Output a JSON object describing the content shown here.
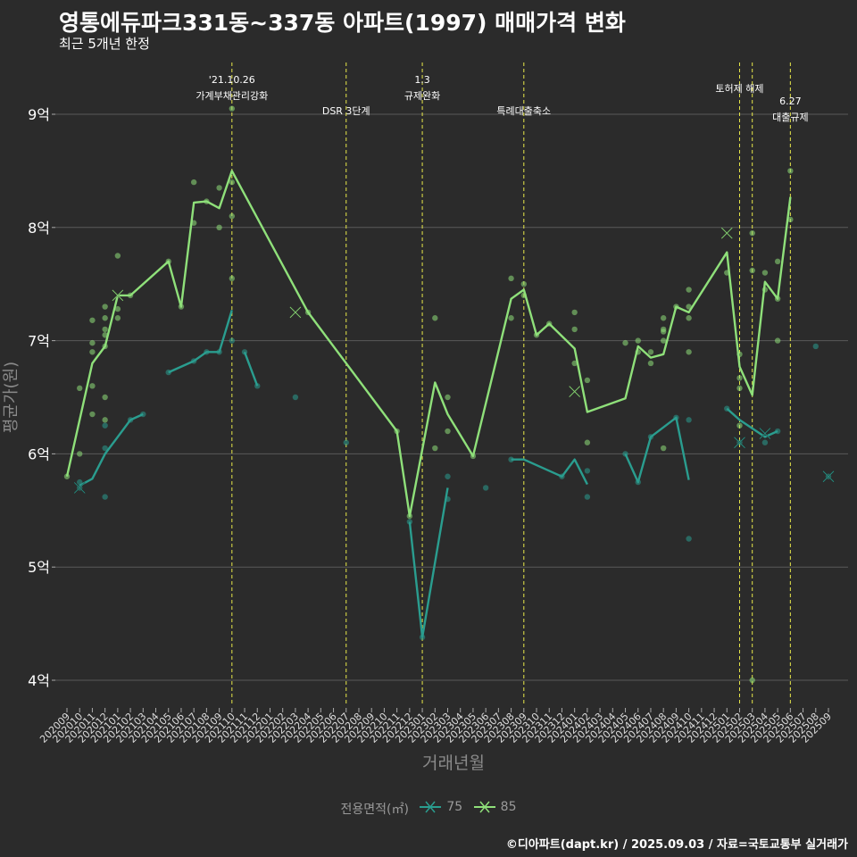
{
  "header": {
    "title": "영통에듀파크331동~337동 아파트(1997) 매매가격 변화",
    "subtitle": "최근 5개년 한정"
  },
  "caption": "©디아파트(dapt.kr) / 2025.09.03 / 자료=국토교통부 실거래가",
  "colors": {
    "background": "#2b2b2b",
    "grid": "#5a5a5a",
    "series_75": "#2a9d8f",
    "series_85": "#8fe07a",
    "event_line": "#e8e84a"
  },
  "chart_data": {
    "type": "line",
    "title": "영통에듀파크331동~337동 아파트(1997) 매매가격 변화",
    "subtitle": "최근 5개년 한정",
    "xlabel": "거래년월",
    "ylabel": "평균가(원)",
    "x_ticks": [
      "202009",
      "202010",
      "202011",
      "202012",
      "202101",
      "202102",
      "202103",
      "202104",
      "202105",
      "202106",
      "202107",
      "202108",
      "202109",
      "202110",
      "202111",
      "202112",
      "202201",
      "202202",
      "202203",
      "202204",
      "202205",
      "202206",
      "202207",
      "202208",
      "202209",
      "202210",
      "202211",
      "202212",
      "202301",
      "202302",
      "202303",
      "202304",
      "202305",
      "202306",
      "202307",
      "202308",
      "202309",
      "202310",
      "202311",
      "202312",
      "202401",
      "202402",
      "202403",
      "202404",
      "202405",
      "202406",
      "202407",
      "202408",
      "202409",
      "202410",
      "202411",
      "202412",
      "202501",
      "202502",
      "202503",
      "202504",
      "202505",
      "202506",
      "202507",
      "202508",
      "202509"
    ],
    "y_ticks": [
      4,
      5,
      6,
      7,
      8,
      9
    ],
    "y_tick_labels": [
      "4억",
      "5억",
      "6억",
      "7억",
      "8억",
      "9억"
    ],
    "ylim": [
      3.8,
      9.35
    ],
    "grid": true,
    "legend": {
      "title": "전용면적(㎡)",
      "position": "bottom",
      "items": [
        "75",
        "85"
      ]
    },
    "events": [
      {
        "month": "202110",
        "label_lines": [
          "'21.10.26",
          "가계부채관리강화"
        ]
      },
      {
        "month": "202207",
        "label_lines": [
          "DSR 3단계"
        ]
      },
      {
        "month": "202301",
        "label_lines": [
          "1.3",
          "규제완화"
        ]
      },
      {
        "month": "202309",
        "label_lines": [
          "특례대출축소"
        ]
      },
      {
        "month": "202502",
        "label_lines": [
          "토허제 해제"
        ]
      },
      {
        "month": "202503",
        "label_lines": [
          ""
        ]
      },
      {
        "month": "202506",
        "label_lines": [
          "6.27",
          "대출규제"
        ]
      }
    ],
    "series": [
      {
        "name": "75",
        "color": "#2a9d8f",
        "line": [
          {
            "x": "202010",
            "y": 5.72
          },
          {
            "x": "202011",
            "y": 5.78
          },
          {
            "x": "202012",
            "y": 6.0
          },
          {
            "x": "202102",
            "y": 6.3
          },
          {
            "x": "202103",
            "y": 6.35
          },
          null,
          {
            "x": "202105",
            "y": 6.72
          },
          {
            "x": "202107",
            "y": 6.82
          },
          {
            "x": "202108",
            "y": 6.9
          },
          {
            "x": "202109",
            "y": 6.9
          },
          {
            "x": "202110",
            "y": 7.27
          },
          null,
          {
            "x": "202111",
            "y": 6.9
          },
          {
            "x": "202112",
            "y": 6.6
          },
          null,
          {
            "x": "202212",
            "y": 5.4
          },
          {
            "x": "202301",
            "y": 4.38
          },
          {
            "x": "202303",
            "y": 5.7
          },
          null,
          {
            "x": "202308",
            "y": 5.95
          },
          {
            "x": "202309",
            "y": 5.95
          },
          {
            "x": "202312",
            "y": 5.8
          },
          {
            "x": "202401",
            "y": 5.95
          },
          {
            "x": "202402",
            "y": 5.73
          },
          null,
          {
            "x": "202405",
            "y": 6.0
          },
          {
            "x": "202406",
            "y": 5.75
          },
          {
            "x": "202407",
            "y": 6.15
          },
          {
            "x": "202409",
            "y": 6.32
          },
          {
            "x": "202410",
            "y": 5.77
          },
          null,
          {
            "x": "202501",
            "y": 6.4
          },
          {
            "x": "202502",
            "y": 6.3
          },
          {
            "x": "202504",
            "y": 6.15
          },
          {
            "x": "202505",
            "y": 6.2
          }
        ],
        "points": [
          {
            "x": "202010",
            "y": 5.75
          },
          {
            "x": "202010",
            "y": 5.7
          },
          {
            "x": "202012",
            "y": 6.05
          },
          {
            "x": "202012",
            "y": 5.62
          },
          {
            "x": "202012",
            "y": 6.25
          },
          {
            "x": "202102",
            "y": 6.3
          },
          {
            "x": "202103",
            "y": 6.35
          },
          {
            "x": "202105",
            "y": 6.72
          },
          {
            "x": "202107",
            "y": 6.82
          },
          {
            "x": "202108",
            "y": 6.9
          },
          {
            "x": "202109",
            "y": 6.9
          },
          {
            "x": "202110",
            "y": 7.0
          },
          {
            "x": "202111",
            "y": 6.9
          },
          {
            "x": "202112",
            "y": 6.6
          },
          {
            "x": "202203",
            "y": 6.5
          },
          {
            "x": "202207",
            "y": 6.1
          },
          {
            "x": "202212",
            "y": 5.4
          },
          {
            "x": "202301",
            "y": 4.38
          },
          {
            "x": "202303",
            "y": 5.8
          },
          {
            "x": "202303",
            "y": 5.6
          },
          {
            "x": "202306",
            "y": 5.7
          },
          {
            "x": "202308",
            "y": 5.95
          },
          {
            "x": "202312",
            "y": 5.8
          },
          {
            "x": "202402",
            "y": 5.85
          },
          {
            "x": "202402",
            "y": 5.62
          },
          {
            "x": "202405",
            "y": 6.0
          },
          {
            "x": "202406",
            "y": 5.75
          },
          {
            "x": "202407",
            "y": 6.15
          },
          {
            "x": "202409",
            "y": 6.32
          },
          {
            "x": "202410",
            "y": 6.3
          },
          {
            "x": "202410",
            "y": 5.25
          },
          {
            "x": "202501",
            "y": 6.4
          },
          {
            "x": "202502",
            "y": 6.1
          },
          {
            "x": "202504",
            "y": 6.1
          },
          {
            "x": "202505",
            "y": 6.2
          },
          {
            "x": "202508",
            "y": 6.95
          },
          {
            "x": "202509",
            "y": 5.8
          }
        ],
        "markers_x": [
          {
            "x": "202010",
            "y": 5.7
          },
          {
            "x": "202502",
            "y": 6.1
          },
          {
            "x": "202504",
            "y": 6.18
          },
          {
            "x": "202509",
            "y": 5.8
          }
        ]
      },
      {
        "name": "85",
        "color": "#8fe07a",
        "line": [
          {
            "x": "202009",
            "y": 5.8
          },
          {
            "x": "202011",
            "y": 6.8
          },
          {
            "x": "202012",
            "y": 6.95
          },
          {
            "x": "202101",
            "y": 7.4
          },
          {
            "x": "202102",
            "y": 7.4
          },
          {
            "x": "202105",
            "y": 7.7
          },
          {
            "x": "202106",
            "y": 7.3
          },
          {
            "x": "202107",
            "y": 8.22
          },
          {
            "x": "202108",
            "y": 8.23
          },
          {
            "x": "202109",
            "y": 8.17
          },
          {
            "x": "202110",
            "y": 8.5
          },
          {
            "x": "202204",
            "y": 7.25
          },
          {
            "x": "202211",
            "y": 6.2
          },
          {
            "x": "202212",
            "y": 5.45
          },
          {
            "x": "202302",
            "y": 6.63
          },
          {
            "x": "202303",
            "y": 6.35
          },
          {
            "x": "202305",
            "y": 5.98
          },
          {
            "x": "202308",
            "y": 7.37
          },
          {
            "x": "202309",
            "y": 7.45
          },
          {
            "x": "202310",
            "y": 7.05
          },
          {
            "x": "202311",
            "y": 7.15
          },
          {
            "x": "202401",
            "y": 6.93
          },
          {
            "x": "202402",
            "y": 6.37
          },
          {
            "x": "202405",
            "y": 6.49
          },
          {
            "x": "202406",
            "y": 6.95
          },
          {
            "x": "202407",
            "y": 6.85
          },
          {
            "x": "202408",
            "y": 6.88
          },
          {
            "x": "202409",
            "y": 7.3
          },
          {
            "x": "202410",
            "y": 7.25
          },
          {
            "x": "202501",
            "y": 7.78
          },
          {
            "x": "202502",
            "y": 6.77
          },
          {
            "x": "202503",
            "y": 6.52
          },
          {
            "x": "202504",
            "y": 7.52
          },
          {
            "x": "202505",
            "y": 7.37
          },
          {
            "x": "202506",
            "y": 8.27
          }
        ],
        "points": [
          {
            "x": "202009",
            "y": 5.8
          },
          {
            "x": "202010",
            "y": 6.0
          },
          {
            "x": "202010",
            "y": 6.58
          },
          {
            "x": "202011",
            "y": 6.6
          },
          {
            "x": "202011",
            "y": 6.35
          },
          {
            "x": "202011",
            "y": 6.9
          },
          {
            "x": "202011",
            "y": 6.98
          },
          {
            "x": "202011",
            "y": 7.18
          },
          {
            "x": "202012",
            "y": 7.3
          },
          {
            "x": "202012",
            "y": 7.2
          },
          {
            "x": "202012",
            "y": 7.1
          },
          {
            "x": "202012",
            "y": 7.05
          },
          {
            "x": "202012",
            "y": 6.95
          },
          {
            "x": "202012",
            "y": 6.5
          },
          {
            "x": "202012",
            "y": 6.3
          },
          {
            "x": "202101",
            "y": 7.75
          },
          {
            "x": "202101",
            "y": 7.28
          },
          {
            "x": "202101",
            "y": 7.2
          },
          {
            "x": "202102",
            "y": 7.4
          },
          {
            "x": "202105",
            "y": 7.7
          },
          {
            "x": "202106",
            "y": 7.3
          },
          {
            "x": "202107",
            "y": 8.4
          },
          {
            "x": "202107",
            "y": 8.04
          },
          {
            "x": "202108",
            "y": 8.23
          },
          {
            "x": "202109",
            "y": 8.35
          },
          {
            "x": "202109",
            "y": 8.0
          },
          {
            "x": "202110",
            "y": 9.05
          },
          {
            "x": "202110",
            "y": 8.4
          },
          {
            "x": "202110",
            "y": 8.1
          },
          {
            "x": "202110",
            "y": 7.55
          },
          {
            "x": "202204",
            "y": 7.25
          },
          {
            "x": "202211",
            "y": 6.2
          },
          {
            "x": "202212",
            "y": 5.45
          },
          {
            "x": "202302",
            "y": 7.2
          },
          {
            "x": "202302",
            "y": 6.05
          },
          {
            "x": "202303",
            "y": 6.5
          },
          {
            "x": "202303",
            "y": 6.2
          },
          {
            "x": "202305",
            "y": 5.98
          },
          {
            "x": "202308",
            "y": 7.55
          },
          {
            "x": "202308",
            "y": 7.2
          },
          {
            "x": "202309",
            "y": 7.5
          },
          {
            "x": "202309",
            "y": 7.4
          },
          {
            "x": "202310",
            "y": 7.05
          },
          {
            "x": "202311",
            "y": 7.15
          },
          {
            "x": "202401",
            "y": 7.25
          },
          {
            "x": "202401",
            "y": 7.1
          },
          {
            "x": "202401",
            "y": 6.8
          },
          {
            "x": "202402",
            "y": 6.65
          },
          {
            "x": "202402",
            "y": 6.1
          },
          {
            "x": "202405",
            "y": 6.98
          },
          {
            "x": "202406",
            "y": 7.0
          },
          {
            "x": "202406",
            "y": 6.9
          },
          {
            "x": "202407",
            "y": 6.9
          },
          {
            "x": "202407",
            "y": 6.8
          },
          {
            "x": "202408",
            "y": 7.2
          },
          {
            "x": "202408",
            "y": 7.1
          },
          {
            "x": "202408",
            "y": 7.08
          },
          {
            "x": "202408",
            "y": 7.0
          },
          {
            "x": "202408",
            "y": 6.05
          },
          {
            "x": "202409",
            "y": 7.3
          },
          {
            "x": "202410",
            "y": 7.45
          },
          {
            "x": "202410",
            "y": 7.3
          },
          {
            "x": "202410",
            "y": 7.2
          },
          {
            "x": "202410",
            "y": 6.9
          },
          {
            "x": "202501",
            "y": 7.6
          },
          {
            "x": "202502",
            "y": 6.88
          },
          {
            "x": "202502",
            "y": 6.67
          },
          {
            "x": "202502",
            "y": 6.58
          },
          {
            "x": "202502",
            "y": 6.25
          },
          {
            "x": "202503",
            "y": 7.95
          },
          {
            "x": "202503",
            "y": 7.62
          },
          {
            "x": "202503",
            "y": 4.0
          },
          {
            "x": "202504",
            "y": 7.6
          },
          {
            "x": "202504",
            "y": 7.45
          },
          {
            "x": "202505",
            "y": 7.7
          },
          {
            "x": "202505",
            "y": 7.37
          },
          {
            "x": "202505",
            "y": 7.0
          },
          {
            "x": "202506",
            "y": 8.5
          },
          {
            "x": "202506",
            "y": 8.07
          }
        ],
        "markers_x": [
          {
            "x": "202101",
            "y": 7.4
          },
          {
            "x": "202203",
            "y": 7.25
          },
          {
            "x": "202401",
            "y": 6.55
          },
          {
            "x": "202501",
            "y": 7.95
          }
        ]
      }
    ]
  }
}
